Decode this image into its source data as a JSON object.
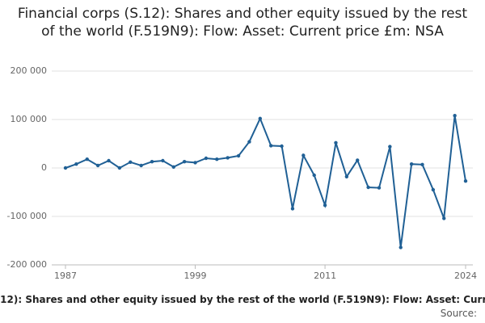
{
  "chart_data": {
    "type": "line",
    "title": "Financial corps (S.12): Shares and other equity issued by the rest of the world (F.519N9): Flow: Asset: Current price £m: NSA",
    "source": "Source:",
    "x": [
      1987,
      1988,
      1989,
      1990,
      1991,
      1992,
      1993,
      1994,
      1995,
      1996,
      1997,
      1998,
      1999,
      2000,
      2001,
      2002,
      2003,
      2004,
      2005,
      2006,
      2007,
      2008,
      2009,
      2010,
      2011,
      2012,
      2013,
      2014,
      2015,
      2016,
      2017,
      2018,
      2019,
      2020,
      2021,
      2022,
      2023,
      2024
    ],
    "series": [
      {
        "color": "#206095",
        "values": [
          0,
          8000,
          18000,
          5000,
          15000,
          0,
          12000,
          5000,
          13000,
          15000,
          2000,
          13000,
          11000,
          20000,
          18000,
          21000,
          25000,
          54000,
          102000,
          46000,
          45000,
          -84000,
          26000,
          -15000,
          -77000,
          52000,
          -18000,
          16000,
          -40000,
          -41000,
          44000,
          -164000,
          8000,
          7000,
          -45000,
          -104000,
          108000,
          -27000
        ]
      }
    ],
    "xlim": [
      1987,
      2024
    ],
    "xticks": [
      1987,
      1999,
      2011,
      2024
    ],
    "ylim": [
      -200000,
      200000
    ],
    "yticks": [
      {
        "value": -200000,
        "label": "-200 000"
      },
      {
        "value": -100000,
        "label": "-100 000"
      },
      0,
      {
        "value": 100000,
        "label": "100 000"
      },
      {
        "value": 200000,
        "label": "200 000"
      }
    ],
    "grid": true
  }
}
